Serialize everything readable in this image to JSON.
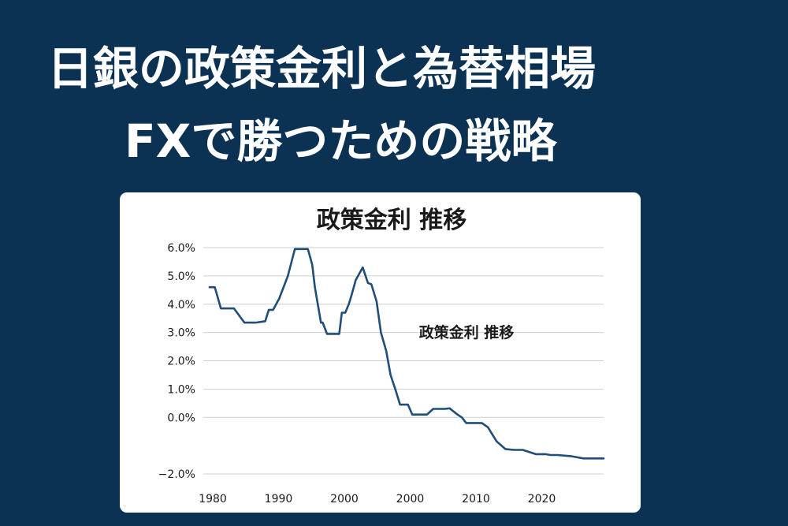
{
  "header": {
    "line1": "日銀の政策金利と為替相場",
    "line2": "FXで勝つための戦略"
  },
  "colors": {
    "background": "#0b3153",
    "card": "#ffffff",
    "line": "#1f4e79",
    "grid": "#cfcfcf",
    "text": "#1a1a1a"
  },
  "chart_data": {
    "type": "line",
    "title": "政策金利 推移",
    "annotation": "政策金利  推移",
    "xlabel": "",
    "ylabel": "",
    "ylim": [
      -2.0,
      6.0
    ],
    "grid": true,
    "legend": "none",
    "y_ticks": [
      "6.0%",
      "5.0%",
      "4.0%",
      "3.0%",
      "2.0%",
      "1.0%",
      "0.0%",
      "−2.0%"
    ],
    "x_ticks": [
      "1980",
      "1990",
      "2000",
      "2000",
      "2010",
      "2020"
    ],
    "series": [
      {
        "x": [
          1981.0,
          1981.6,
          1982.3,
          1983.0,
          1983.8,
          1985.0,
          1986.3,
          1987.4,
          1987.8,
          1988.3,
          1989.0,
          1990.0,
          1990.8,
          1991.6,
          1992.3,
          1992.8,
          1993.1,
          1993.8,
          1994.0,
          1994.5,
          1995.0,
          1995.3,
          1995.9,
          1996.2,
          1996.6,
          1997.0,
          1997.3,
          1997.8,
          1998.6,
          1999.2,
          1999.6,
          2000.2,
          2000.7,
          2001.3,
          2001.8,
          2002.4,
          2002.9,
          2003.3,
          2003.8,
          2004.3,
          2004.9,
          2005.3,
          2006.0,
          2006.7,
          2007.2,
          2008.0,
          2008.6,
          2009.5,
          2010.0,
          2010.5,
          2011.0,
          2011.6,
          2012.3,
          2013.0,
          2014.0,
          2015.0,
          2016.0,
          2017.0,
          2018.5,
          2019.6,
          2020.2,
          2021.0,
          2022.5,
          2024.0,
          2025.5,
          2026.3
        ],
        "y": [
          4.6,
          4.6,
          3.85,
          3.85,
          3.85,
          3.35,
          3.35,
          3.4,
          3.8,
          3.8,
          4.2,
          5.0,
          5.95,
          5.95,
          5.95,
          5.4,
          4.6,
          3.35,
          3.35,
          2.95,
          2.95,
          2.95,
          2.95,
          3.7,
          3.7,
          4.0,
          4.3,
          4.85,
          5.3,
          4.75,
          4.7,
          4.1,
          3.0,
          2.35,
          1.5,
          0.95,
          0.45,
          0.45,
          0.45,
          0.1,
          0.1,
          0.1,
          0.1,
          0.3,
          0.3,
          0.3,
          0.32,
          0.1,
          0.0,
          -0.2,
          -0.2,
          -0.2,
          -0.2,
          -0.35,
          -0.85,
          -1.12,
          -1.15,
          -1.15,
          -1.3,
          -1.3,
          -1.33,
          -1.33,
          -1.37,
          -1.45,
          -1.45,
          -1.45
        ]
      }
    ]
  }
}
